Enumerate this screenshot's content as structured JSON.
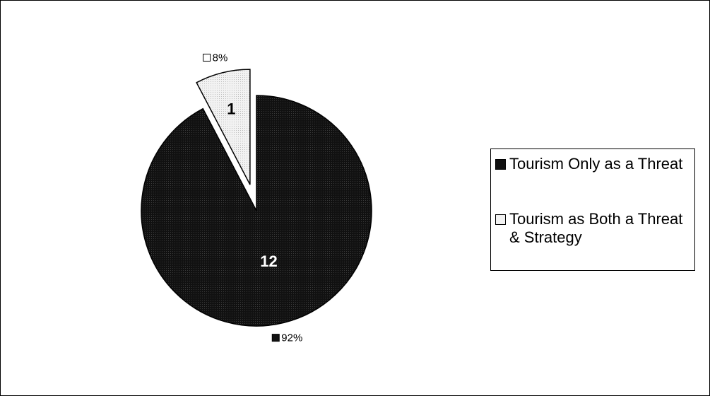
{
  "chart_data": {
    "type": "pie",
    "title": "",
    "start_angle_deg": 0,
    "direction": "clockwise",
    "slices": [
      {
        "name": "Tourism Only as a Threat",
        "value": 12,
        "percent_label": "92%",
        "color": "#111111",
        "label_color": "#ffffff",
        "exploded": false
      },
      {
        "name": "Tourism as Both a Threat & Strategy",
        "value": 1,
        "percent_label": "8%",
        "color": "#eaeaea",
        "label_color": "#000000",
        "exploded": true
      }
    ],
    "legend_position": "right"
  }
}
